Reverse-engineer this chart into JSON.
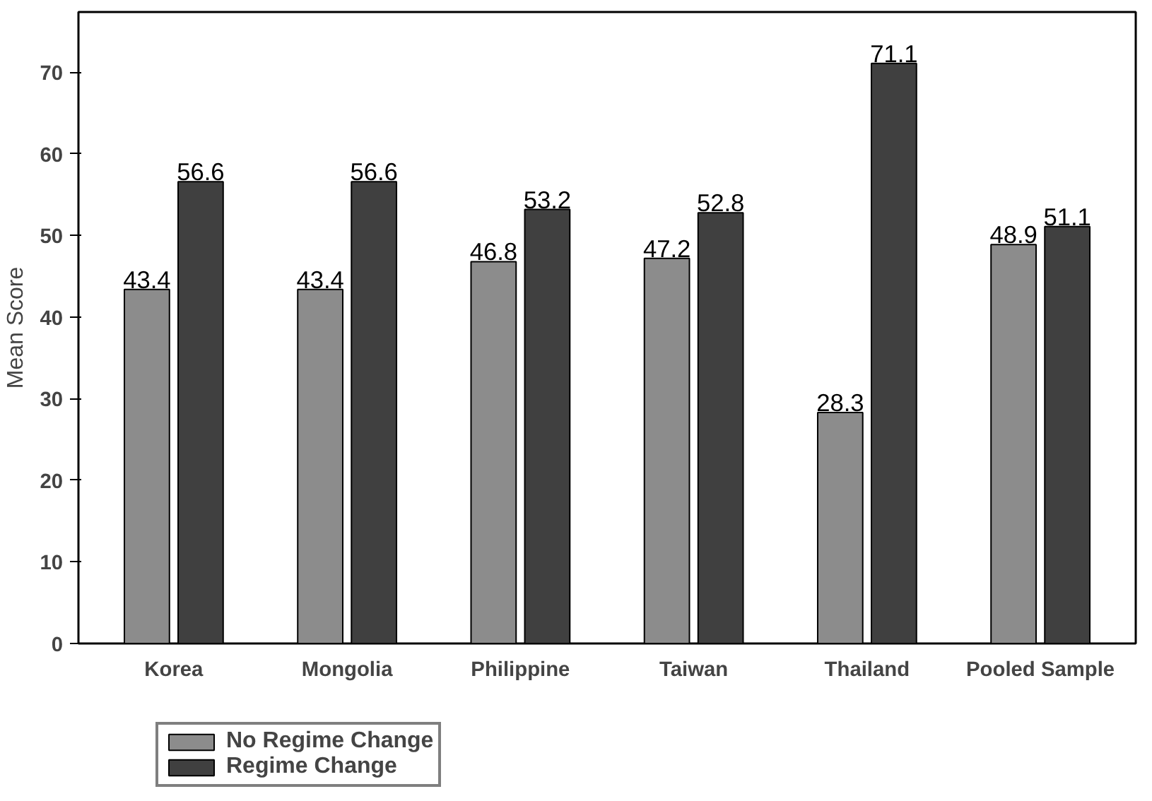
{
  "chart_data": {
    "type": "bar",
    "ylabel": "Mean Score",
    "categories": [
      "Korea",
      "Mongolia",
      "Philippine",
      "Taiwan",
      "Thailand",
      "Pooled Sample"
    ],
    "series": [
      {
        "name": "No Regime Change",
        "color": "#8c8c8c",
        "values": [
          43.4,
          43.4,
          46.8,
          47.2,
          28.3,
          48.9
        ]
      },
      {
        "name": "Regime Change",
        "color": "#404040",
        "values": [
          56.6,
          56.6,
          53.2,
          52.8,
          71.1,
          51.1
        ]
      }
    ],
    "ylim": [
      0,
      77.4
    ],
    "yticks": [
      0,
      10,
      20,
      30,
      40,
      50,
      60,
      70
    ],
    "data_labels": true,
    "grid": false,
    "legend": "bottom left"
  }
}
